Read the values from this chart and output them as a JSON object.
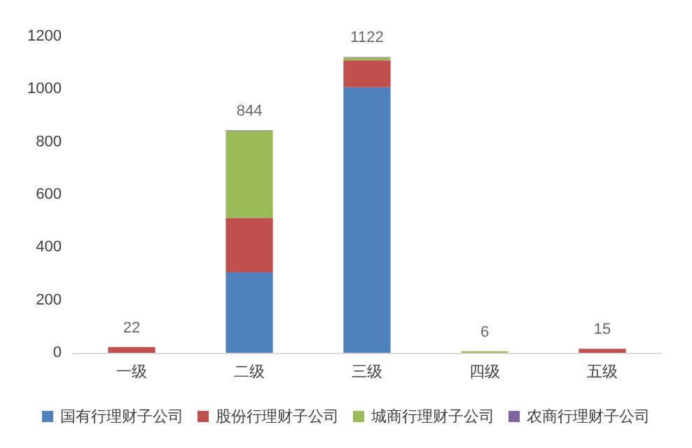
{
  "chart_data": {
    "type": "bar",
    "stacked": true,
    "categories": [
      "一级",
      "二级",
      "三级",
      "四级",
      "五级"
    ],
    "series": [
      {
        "name": "国有行理财子公司",
        "color": "#4f81bd",
        "values": [
          0,
          305,
          1007,
          0,
          0
        ]
      },
      {
        "name": "股份行理财子公司",
        "color": "#c0504d",
        "values": [
          22,
          207,
          102,
          0,
          15
        ]
      },
      {
        "name": "城商行理财子公司",
        "color": "#9bbb59",
        "values": [
          0,
          330,
          11,
          6,
          0
        ]
      },
      {
        "name": "农商行理财子公司",
        "color": "#8064a2",
        "values": [
          0,
          2,
          2,
          0,
          0
        ]
      }
    ],
    "totals": [
      "22",
      "844",
      "1122",
      "6",
      "15"
    ],
    "ylim": [
      0,
      1200
    ],
    "yticks": [
      0,
      200,
      400,
      600,
      800,
      1000,
      1200
    ],
    "grid": false,
    "legend": "bottom"
  }
}
